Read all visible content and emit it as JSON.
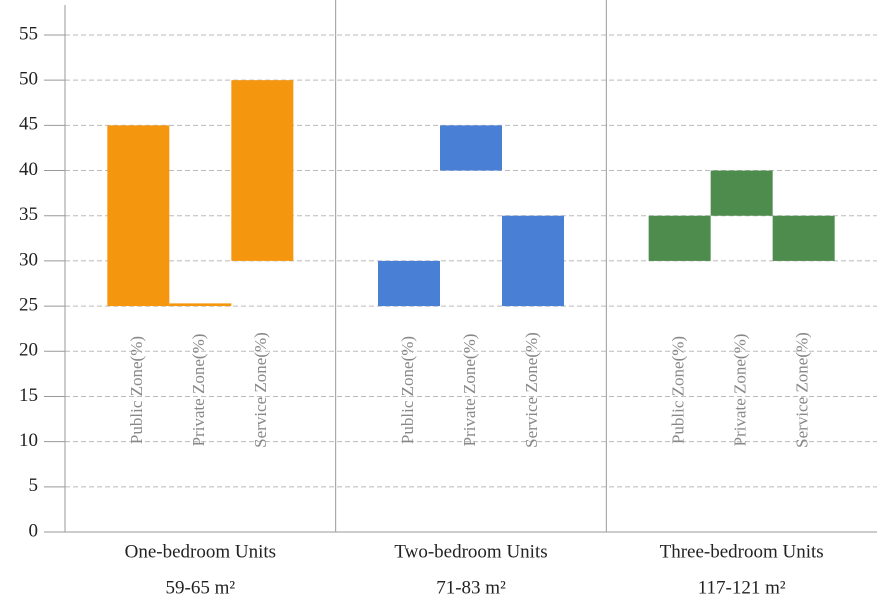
{
  "chart_data": {
    "type": "floating_bar",
    "ylim": [
      0,
      55
    ],
    "yticks": [
      0,
      5,
      10,
      15,
      20,
      25,
      30,
      35,
      40,
      45,
      50,
      55
    ],
    "grid": true,
    "groups": [
      {
        "label": "One-bedroom Units",
        "sublabel": "59-65 m²",
        "color": "#f5960f",
        "bars": [
          {
            "name": "Public Zone(%)",
            "values": [
              25,
              45
            ]
          },
          {
            "name": "Private Zone(%)",
            "values": [
              25,
              25.3
            ]
          },
          {
            "name": "Service Zone(%)",
            "values": [
              30,
              50
            ]
          }
        ]
      },
      {
        "label": "Two-bedroom Units",
        "sublabel": "71-83 m²",
        "color": "#4a7fd6",
        "bars": [
          {
            "name": "Public Zone(%)",
            "values": [
              25,
              30
            ]
          },
          {
            "name": "Private Zone(%)",
            "values": [
              40,
              45
            ]
          },
          {
            "name": "Service Zone(%)",
            "values": [
              25,
              35
            ]
          }
        ]
      },
      {
        "label": "Three-bedroom Units",
        "sublabel": "117-121 m²",
        "color": "#4d8c4d",
        "bars": [
          {
            "name": "Public Zone(%)",
            "values": [
              30,
              35
            ]
          },
          {
            "name": "Private Zone(%)",
            "values": [
              35,
              40
            ]
          },
          {
            "name": "Service Zone(%)",
            "values": [
              30,
              35
            ]
          }
        ]
      }
    ]
  }
}
